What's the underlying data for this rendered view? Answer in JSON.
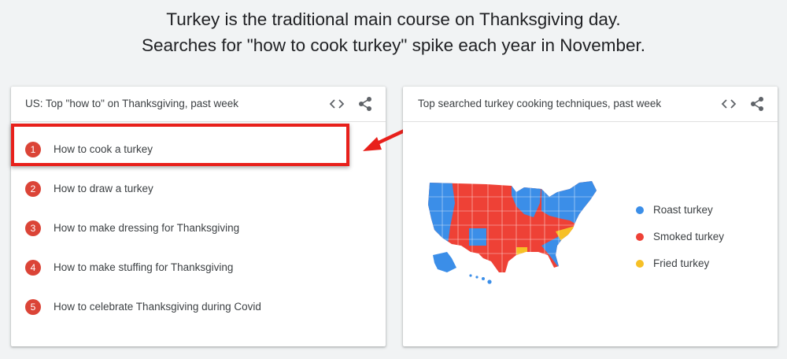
{
  "headline": {
    "line1": "Turkey is the traditional main course on Thanksgiving day.",
    "line2": "Searches for \"how to cook turkey\" spike each year in November."
  },
  "left_card": {
    "title": "US: Top \"how to\" on Thanksgiving, past week",
    "items": [
      {
        "rank": "1",
        "label": "How to cook a turkey"
      },
      {
        "rank": "2",
        "label": "How to draw a turkey"
      },
      {
        "rank": "3",
        "label": "How to make dressing for Thanksgiving"
      },
      {
        "rank": "4",
        "label": "How to make stuffing for Thanksgiving"
      },
      {
        "rank": "5",
        "label": "How to celebrate Thanksgiving during Covid"
      }
    ]
  },
  "right_card": {
    "title": "Top searched turkey cooking techniques, past week",
    "legend": [
      {
        "label": "Roast turkey",
        "color": "#3b8ee8"
      },
      {
        "label": "Smoked turkey",
        "color": "#ee4136"
      },
      {
        "label": "Fried turkey",
        "color": "#f6c026"
      }
    ]
  },
  "icons": {
    "embed": "embed-code-icon",
    "share": "share-icon"
  },
  "colors": {
    "rank_badge": "#db4437",
    "highlight": "#e8201b",
    "roast": "#3b8ee8",
    "smoked": "#ee4136",
    "fried": "#f6c026"
  }
}
